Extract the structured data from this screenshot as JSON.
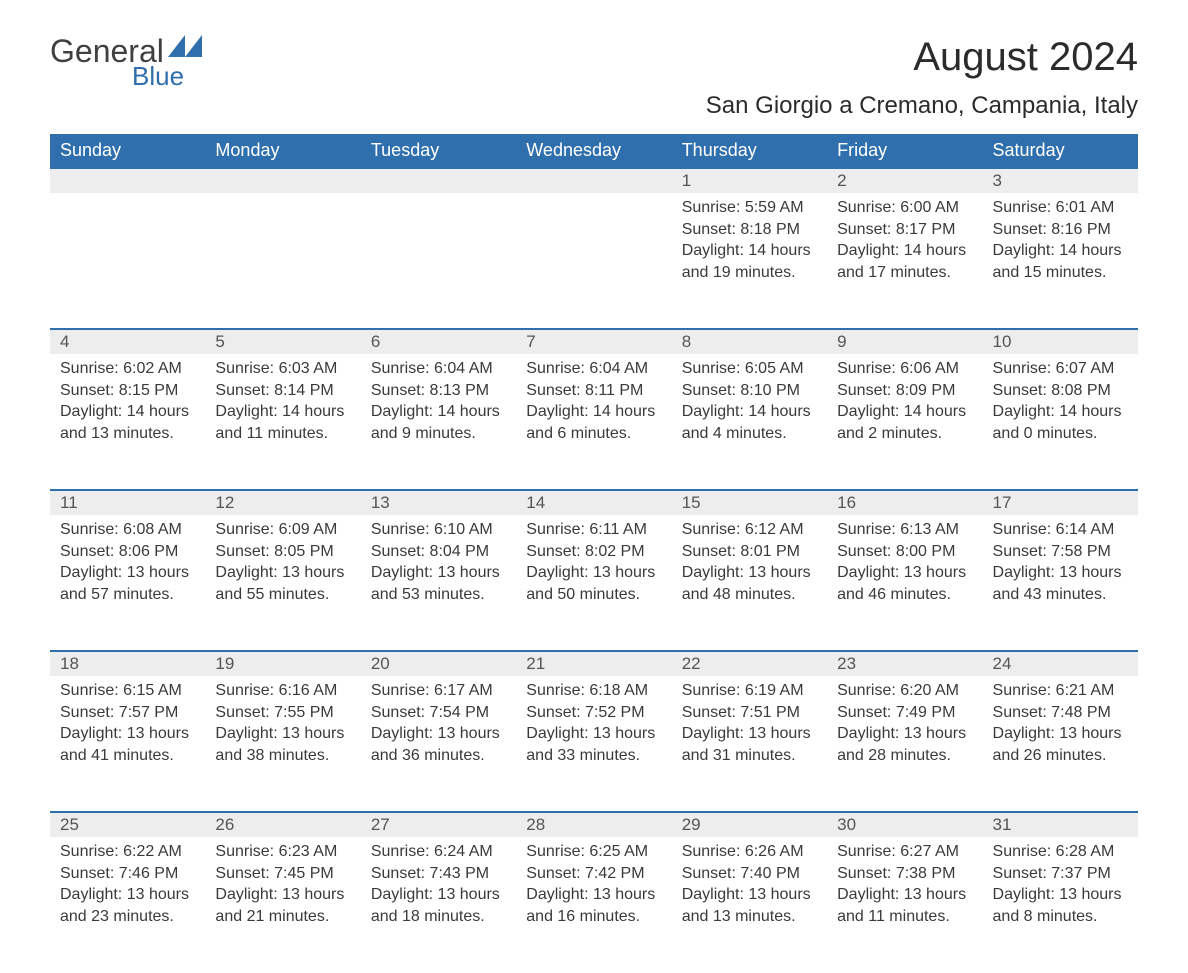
{
  "brand": {
    "name": "General",
    "sub": "Blue"
  },
  "title": "August 2024",
  "location": "San Giorgio a Cremano, Campania, Italy",
  "colors": {
    "header_bg": "#2f6fad",
    "header_text": "#ffffff",
    "daynum_bg": "#ededed",
    "border": "#2f6fad",
    "text": "#3a3a3a",
    "logo_text": "#404040",
    "logo_sub": "#2f6fad",
    "page_bg": "#ffffff"
  },
  "weekdays": [
    "Sunday",
    "Monday",
    "Tuesday",
    "Wednesday",
    "Thursday",
    "Friday",
    "Saturday"
  ],
  "weeks": [
    [
      null,
      null,
      null,
      null,
      {
        "n": "1",
        "sunrise": "Sunrise: 5:59 AM",
        "sunset": "Sunset: 8:18 PM",
        "day1": "Daylight: 14 hours",
        "day2": "and 19 minutes."
      },
      {
        "n": "2",
        "sunrise": "Sunrise: 6:00 AM",
        "sunset": "Sunset: 8:17 PM",
        "day1": "Daylight: 14 hours",
        "day2": "and 17 minutes."
      },
      {
        "n": "3",
        "sunrise": "Sunrise: 6:01 AM",
        "sunset": "Sunset: 8:16 PM",
        "day1": "Daylight: 14 hours",
        "day2": "and 15 minutes."
      }
    ],
    [
      {
        "n": "4",
        "sunrise": "Sunrise: 6:02 AM",
        "sunset": "Sunset: 8:15 PM",
        "day1": "Daylight: 14 hours",
        "day2": "and 13 minutes."
      },
      {
        "n": "5",
        "sunrise": "Sunrise: 6:03 AM",
        "sunset": "Sunset: 8:14 PM",
        "day1": "Daylight: 14 hours",
        "day2": "and 11 minutes."
      },
      {
        "n": "6",
        "sunrise": "Sunrise: 6:04 AM",
        "sunset": "Sunset: 8:13 PM",
        "day1": "Daylight: 14 hours",
        "day2": "and 9 minutes."
      },
      {
        "n": "7",
        "sunrise": "Sunrise: 6:04 AM",
        "sunset": "Sunset: 8:11 PM",
        "day1": "Daylight: 14 hours",
        "day2": "and 6 minutes."
      },
      {
        "n": "8",
        "sunrise": "Sunrise: 6:05 AM",
        "sunset": "Sunset: 8:10 PM",
        "day1": "Daylight: 14 hours",
        "day2": "and 4 minutes."
      },
      {
        "n": "9",
        "sunrise": "Sunrise: 6:06 AM",
        "sunset": "Sunset: 8:09 PM",
        "day1": "Daylight: 14 hours",
        "day2": "and 2 minutes."
      },
      {
        "n": "10",
        "sunrise": "Sunrise: 6:07 AM",
        "sunset": "Sunset: 8:08 PM",
        "day1": "Daylight: 14 hours",
        "day2": "and 0 minutes."
      }
    ],
    [
      {
        "n": "11",
        "sunrise": "Sunrise: 6:08 AM",
        "sunset": "Sunset: 8:06 PM",
        "day1": "Daylight: 13 hours",
        "day2": "and 57 minutes."
      },
      {
        "n": "12",
        "sunrise": "Sunrise: 6:09 AM",
        "sunset": "Sunset: 8:05 PM",
        "day1": "Daylight: 13 hours",
        "day2": "and 55 minutes."
      },
      {
        "n": "13",
        "sunrise": "Sunrise: 6:10 AM",
        "sunset": "Sunset: 8:04 PM",
        "day1": "Daylight: 13 hours",
        "day2": "and 53 minutes."
      },
      {
        "n": "14",
        "sunrise": "Sunrise: 6:11 AM",
        "sunset": "Sunset: 8:02 PM",
        "day1": "Daylight: 13 hours",
        "day2": "and 50 minutes."
      },
      {
        "n": "15",
        "sunrise": "Sunrise: 6:12 AM",
        "sunset": "Sunset: 8:01 PM",
        "day1": "Daylight: 13 hours",
        "day2": "and 48 minutes."
      },
      {
        "n": "16",
        "sunrise": "Sunrise: 6:13 AM",
        "sunset": "Sunset: 8:00 PM",
        "day1": "Daylight: 13 hours",
        "day2": "and 46 minutes."
      },
      {
        "n": "17",
        "sunrise": "Sunrise: 6:14 AM",
        "sunset": "Sunset: 7:58 PM",
        "day1": "Daylight: 13 hours",
        "day2": "and 43 minutes."
      }
    ],
    [
      {
        "n": "18",
        "sunrise": "Sunrise: 6:15 AM",
        "sunset": "Sunset: 7:57 PM",
        "day1": "Daylight: 13 hours",
        "day2": "and 41 minutes."
      },
      {
        "n": "19",
        "sunrise": "Sunrise: 6:16 AM",
        "sunset": "Sunset: 7:55 PM",
        "day1": "Daylight: 13 hours",
        "day2": "and 38 minutes."
      },
      {
        "n": "20",
        "sunrise": "Sunrise: 6:17 AM",
        "sunset": "Sunset: 7:54 PM",
        "day1": "Daylight: 13 hours",
        "day2": "and 36 minutes."
      },
      {
        "n": "21",
        "sunrise": "Sunrise: 6:18 AM",
        "sunset": "Sunset: 7:52 PM",
        "day1": "Daylight: 13 hours",
        "day2": "and 33 minutes."
      },
      {
        "n": "22",
        "sunrise": "Sunrise: 6:19 AM",
        "sunset": "Sunset: 7:51 PM",
        "day1": "Daylight: 13 hours",
        "day2": "and 31 minutes."
      },
      {
        "n": "23",
        "sunrise": "Sunrise: 6:20 AM",
        "sunset": "Sunset: 7:49 PM",
        "day1": "Daylight: 13 hours",
        "day2": "and 28 minutes."
      },
      {
        "n": "24",
        "sunrise": "Sunrise: 6:21 AM",
        "sunset": "Sunset: 7:48 PM",
        "day1": "Daylight: 13 hours",
        "day2": "and 26 minutes."
      }
    ],
    [
      {
        "n": "25",
        "sunrise": "Sunrise: 6:22 AM",
        "sunset": "Sunset: 7:46 PM",
        "day1": "Daylight: 13 hours",
        "day2": "and 23 minutes."
      },
      {
        "n": "26",
        "sunrise": "Sunrise: 6:23 AM",
        "sunset": "Sunset: 7:45 PM",
        "day1": "Daylight: 13 hours",
        "day2": "and 21 minutes."
      },
      {
        "n": "27",
        "sunrise": "Sunrise: 6:24 AM",
        "sunset": "Sunset: 7:43 PM",
        "day1": "Daylight: 13 hours",
        "day2": "and 18 minutes."
      },
      {
        "n": "28",
        "sunrise": "Sunrise: 6:25 AM",
        "sunset": "Sunset: 7:42 PM",
        "day1": "Daylight: 13 hours",
        "day2": "and 16 minutes."
      },
      {
        "n": "29",
        "sunrise": "Sunrise: 6:26 AM",
        "sunset": "Sunset: 7:40 PM",
        "day1": "Daylight: 13 hours",
        "day2": "and 13 minutes."
      },
      {
        "n": "30",
        "sunrise": "Sunrise: 6:27 AM",
        "sunset": "Sunset: 7:38 PM",
        "day1": "Daylight: 13 hours",
        "day2": "and 11 minutes."
      },
      {
        "n": "31",
        "sunrise": "Sunrise: 6:28 AM",
        "sunset": "Sunset: 7:37 PM",
        "day1": "Daylight: 13 hours",
        "day2": "and 8 minutes."
      }
    ]
  ]
}
